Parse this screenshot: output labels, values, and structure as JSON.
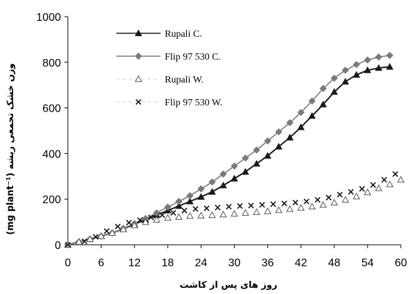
{
  "chart_data": {
    "type": "line",
    "title": "",
    "xlabel": "روز های پس از کاشت",
    "ylabel": "وزن خشک تجمعی ریشه (mg plant⁻¹)",
    "xlim": [
      0,
      60
    ],
    "ylim": [
      0,
      1000
    ],
    "xticks": [
      0,
      6,
      12,
      18,
      24,
      30,
      36,
      42,
      48,
      54,
      60
    ],
    "yticks": [
      0,
      200,
      400,
      600,
      800,
      1000
    ],
    "grid": false,
    "legend_position": "top-left",
    "series": [
      {
        "name": "Rupali C.",
        "color": "#1a1a1a",
        "marker": "triangle-filled",
        "line": "solid",
        "x": [
          0,
          2,
          4,
          6,
          8,
          10,
          12,
          14,
          16,
          18,
          20,
          22,
          24,
          26,
          28,
          30,
          32,
          34,
          36,
          38,
          40,
          42,
          44,
          46,
          48,
          50,
          52,
          54,
          56,
          58
        ],
        "y": [
          0,
          13,
          25,
          38,
          52,
          70,
          90,
          110,
          130,
          150,
          170,
          190,
          210,
          232,
          260,
          290,
          320,
          355,
          390,
          430,
          470,
          515,
          565,
          615,
          670,
          715,
          745,
          765,
          775,
          780
        ]
      },
      {
        "name": "Flip 97 530 C.",
        "color": "#7a7a7a",
        "marker": "diamond-filled",
        "line": "solid",
        "x": [
          0,
          2,
          4,
          6,
          8,
          10,
          12,
          14,
          16,
          18,
          20,
          22,
          24,
          26,
          28,
          30,
          32,
          34,
          36,
          38,
          40,
          42,
          44,
          46,
          48,
          50,
          52,
          54,
          56,
          58
        ],
        "y": [
          0,
          13,
          25,
          38,
          52,
          72,
          93,
          115,
          140,
          165,
          190,
          215,
          245,
          275,
          310,
          345,
          380,
          415,
          455,
          495,
          535,
          580,
          630,
          685,
          730,
          765,
          790,
          810,
          823,
          830
        ]
      },
      {
        "name": "Rupali W.",
        "color": "#555555",
        "marker": "triangle-open",
        "line": "none",
        "x": [
          0,
          2,
          4,
          6,
          8,
          10,
          12,
          14,
          16,
          18,
          20,
          22,
          24,
          26,
          28,
          30,
          32,
          34,
          36,
          38,
          40,
          42,
          44,
          46,
          48,
          50,
          52,
          54,
          56,
          58,
          60
        ],
        "y": [
          0,
          13,
          25,
          38,
          52,
          68,
          85,
          100,
          110,
          118,
          122,
          126,
          128,
          130,
          133,
          136,
          140,
          143,
          147,
          152,
          157,
          162,
          168,
          175,
          185,
          197,
          212,
          230,
          248,
          265,
          285
        ]
      },
      {
        "name": "Flip 97 530 W.",
        "color": "#111111",
        "marker": "x",
        "line": "none",
        "x": [
          0,
          3,
          5,
          7,
          9,
          11,
          13,
          15,
          17,
          19,
          21,
          23,
          25,
          27,
          29,
          31,
          33,
          35,
          37,
          39,
          41,
          43,
          45,
          47,
          49,
          51,
          53,
          55,
          57,
          59
        ],
        "y": [
          0,
          15,
          35,
          60,
          80,
          97,
          108,
          120,
          130,
          140,
          150,
          157,
          160,
          163,
          167,
          170,
          172,
          175,
          178,
          181,
          185,
          190,
          197,
          207,
          220,
          232,
          245,
          262,
          285,
          310
        ]
      }
    ]
  }
}
